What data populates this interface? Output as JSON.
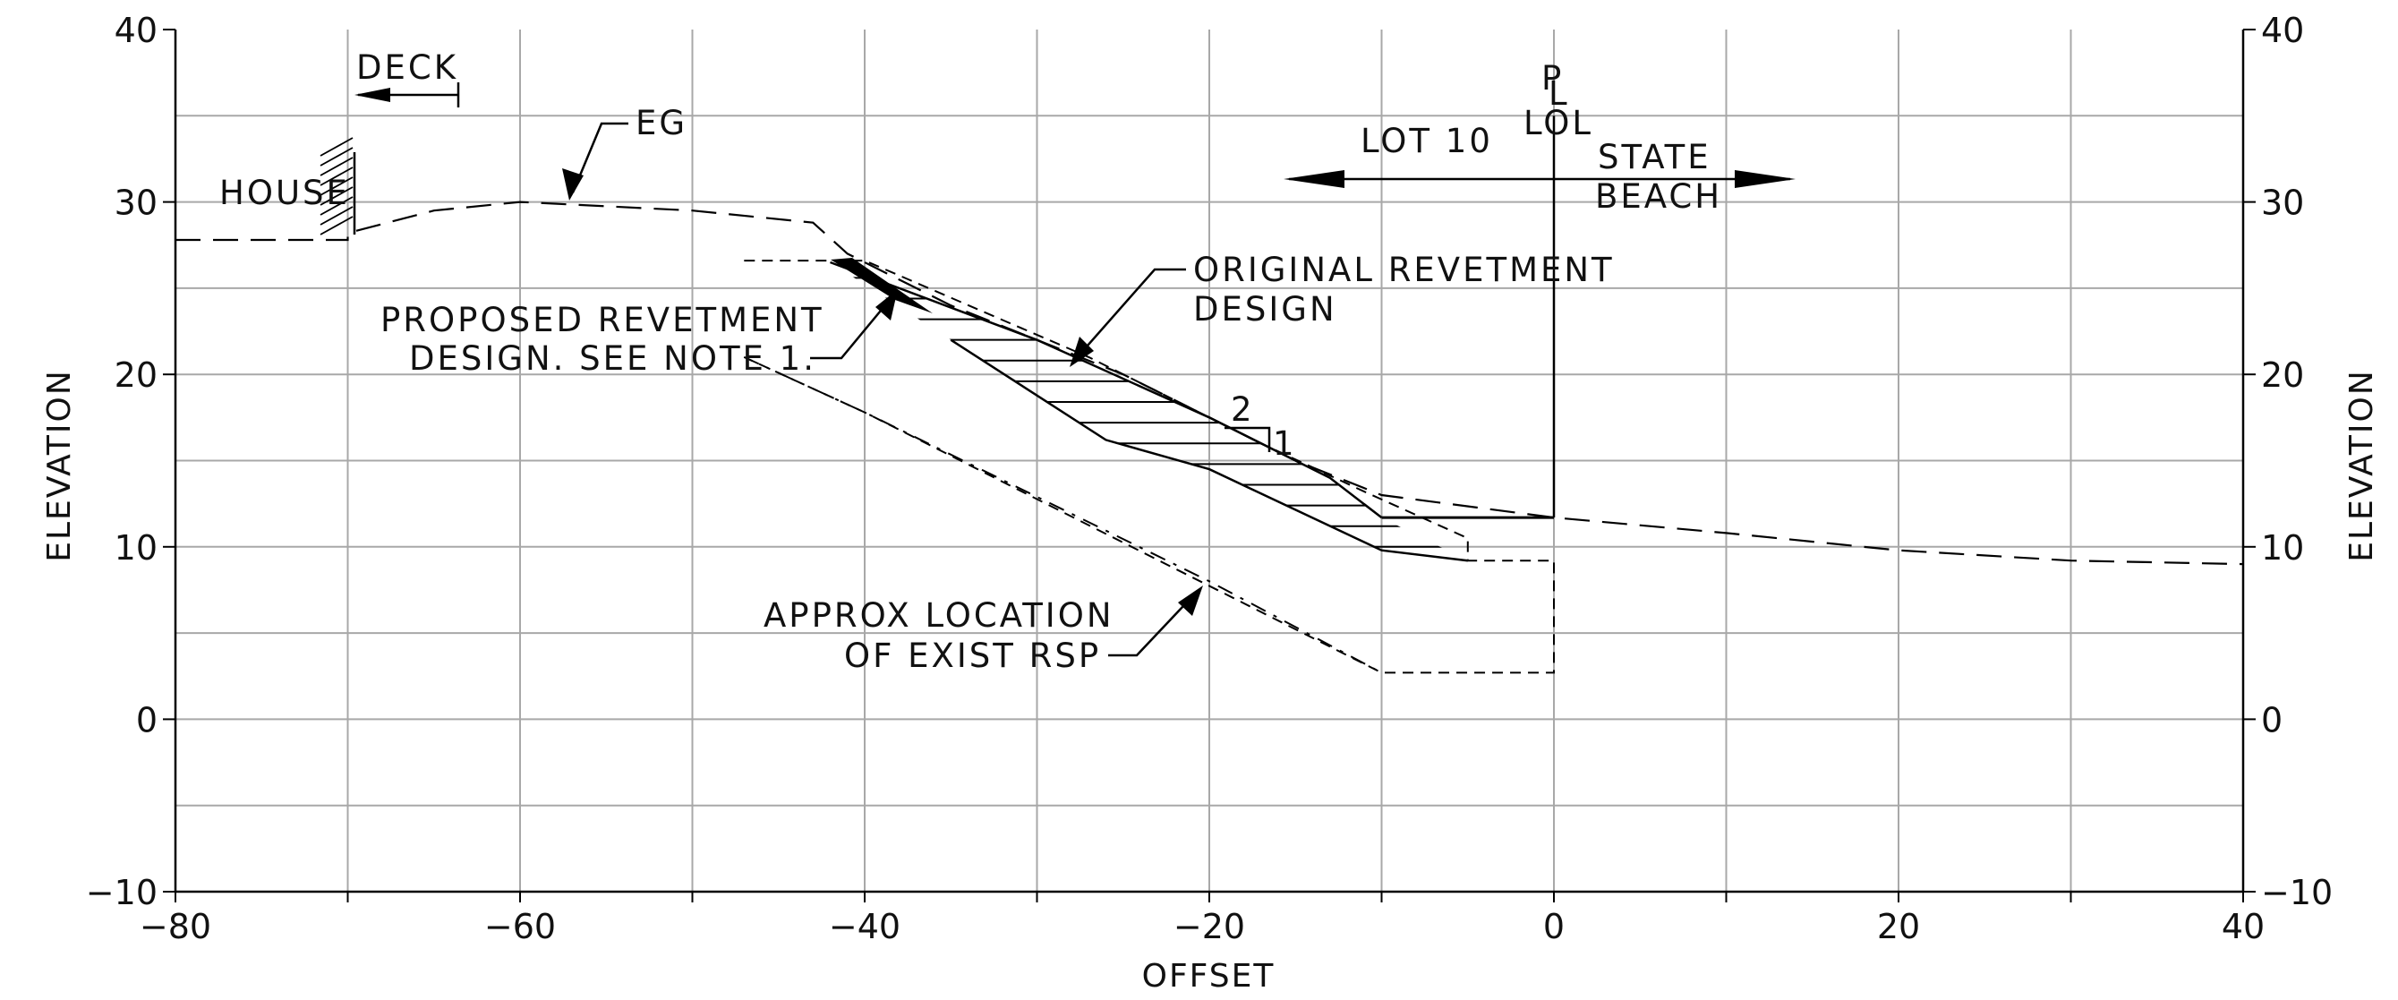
{
  "chart_data": {
    "type": "cross-section",
    "xlabel": "OFFSET",
    "ylabel_left": "ELEVATION",
    "ylabel_right": "ELEVATION",
    "xlim": [
      -80,
      40
    ],
    "ylim": [
      -10,
      40
    ],
    "x_ticks": [
      "−80",
      "−60",
      "−40",
      "−20",
      "0",
      "20",
      "40"
    ],
    "y_ticks": [
      "−10",
      "0",
      "10",
      "20",
      "30",
      "40"
    ],
    "grid": true,
    "existing_ground": [
      [
        -80,
        27.8
      ],
      [
        -70,
        27.8
      ],
      [
        -70,
        28.2
      ],
      [
        -65,
        29.5
      ],
      [
        -60,
        30
      ],
      [
        -50,
        29.5
      ],
      [
        -43,
        28.8
      ],
      [
        -41,
        27
      ],
      [
        -35,
        24
      ],
      [
        -25,
        20
      ],
      [
        -15,
        15
      ],
      [
        -10,
        13
      ],
      [
        0,
        11.7
      ],
      [
        10,
        10.8
      ],
      [
        20,
        9.8
      ],
      [
        30,
        9.2
      ],
      [
        40,
        9
      ]
    ],
    "original_revetment_top": [
      [
        -42,
        26.5
      ],
      [
        -30,
        22
      ],
      [
        -20,
        17.5
      ],
      [
        -13,
        14
      ],
      [
        -10,
        11.7
      ]
    ],
    "original_revetment_bottom": [
      [
        -35,
        22
      ],
      [
        -26,
        16.2
      ],
      [
        -20,
        14.5
      ],
      [
        -10,
        9.8
      ],
      [
        -5,
        9.2
      ]
    ],
    "proposed_revetment_outline": [
      [
        -47,
        26.6
      ],
      [
        -40,
        26.6
      ],
      [
        -27,
        21
      ],
      [
        -17,
        16
      ],
      [
        -11,
        13.2
      ],
      [
        -5,
        10.5
      ],
      [
        -5,
        9.2
      ],
      [
        0,
        9.2
      ],
      [
        0,
        2.7
      ],
      [
        -10,
        2.7
      ],
      [
        -40,
        17.8
      ],
      [
        -47,
        21
      ]
    ],
    "proposed_key_top": [
      [
        -10,
        11.7
      ],
      [
        0,
        11.7
      ]
    ],
    "existing_rsp": [
      [
        -47,
        21
      ],
      [
        -40,
        17.8
      ],
      [
        -20,
        8
      ],
      [
        -10,
        2.7
      ]
    ],
    "slope": {
      "run": "2",
      "rise": "1"
    },
    "property_line_x": 0
  },
  "labels": {
    "deck": "DECK",
    "eg": "EG",
    "house": "HOUSE",
    "lot": "LOT 10",
    "pl_p": "P",
    "pl_l": "L",
    "lol": "LOL",
    "state": "STATE",
    "beach": "BEACH",
    "original_line1": "ORIGINAL REVETMENT",
    "original_line2": "DESIGN",
    "proposed_line1": "PROPOSED REVETMENT",
    "proposed_line2": "DESIGN. SEE NOTE 1.",
    "rsp_line1": "APPROX LOCATION",
    "rsp_line2": "OF EXIST RSP"
  }
}
